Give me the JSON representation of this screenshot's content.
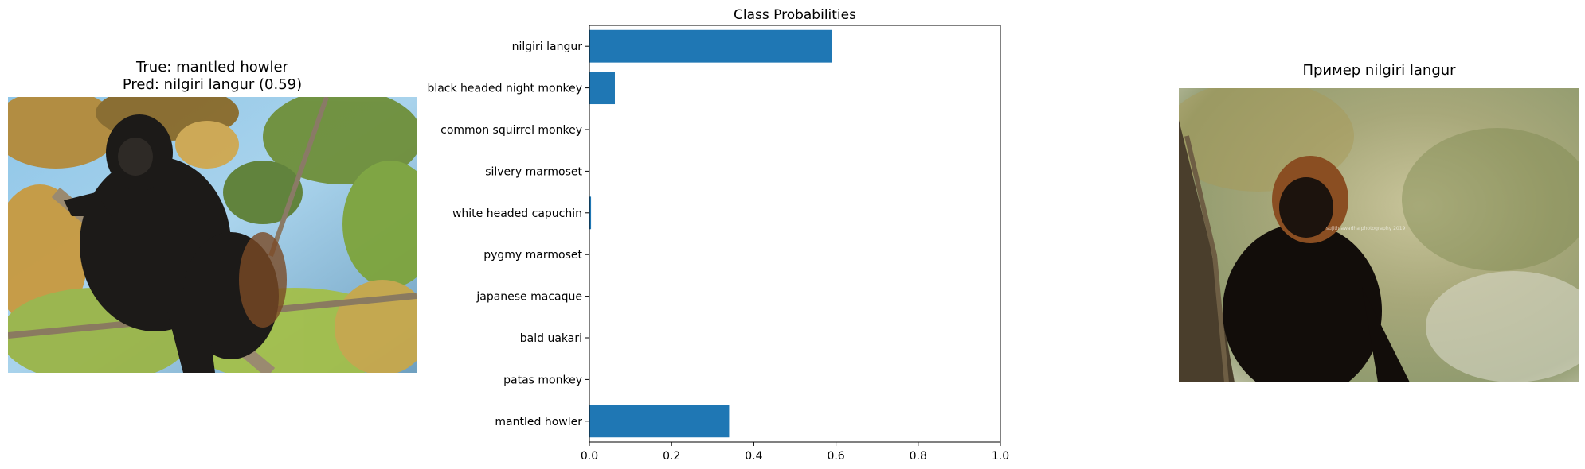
{
  "left_panel": {
    "title_line1": "True: mantled howler",
    "title_line2": "Pred: nilgiri langur (0.59)"
  },
  "right_panel": {
    "title": "Пример nilgiri langur"
  },
  "chart_data": {
    "type": "bar",
    "orientation": "horizontal",
    "title": "Class Probabilities",
    "categories": [
      "nilgiri langur",
      "black headed night monkey",
      "common squirrel monkey",
      "silvery marmoset",
      "white headed capuchin",
      "pygmy marmoset",
      "japanese macaque",
      "bald uakari",
      "patas monkey",
      "mantled howler"
    ],
    "values": [
      0.59,
      0.062,
      0.0,
      0.0,
      0.004,
      0.0,
      0.0,
      0.0,
      0.0,
      0.34
    ],
    "xlim": [
      0,
      1
    ],
    "xticks": [
      0.0,
      0.2,
      0.4,
      0.6,
      0.8,
      1.0
    ],
    "xtick_labels": [
      "0.0",
      "0.2",
      "0.4",
      "0.6",
      "0.8",
      "1.0"
    ],
    "bar_color": "#1f77b4",
    "grid": false
  }
}
